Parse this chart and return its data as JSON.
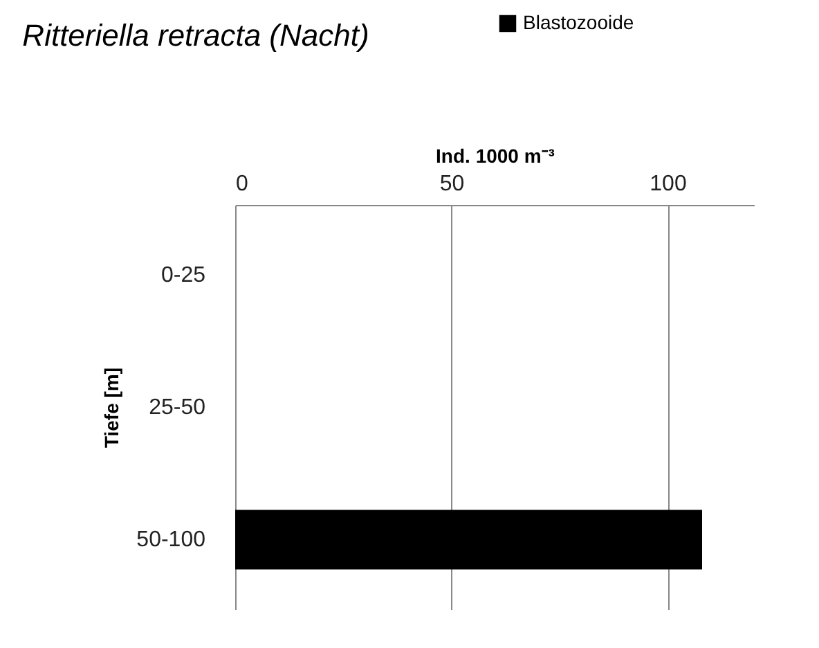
{
  "chart_data": {
    "type": "bar",
    "orientation": "horizontal",
    "title": "Ritteriella retracta (Nacht)",
    "xlabel": "Ind. 1000 m⁻³",
    "ylabel": "Tiefe [m]",
    "categories": [
      "0-25",
      "25-50",
      "50-100"
    ],
    "series": [
      {
        "name": "Blastozooide",
        "color": "#000000",
        "values": [
          0,
          0,
          108
        ]
      }
    ],
    "xlim": [
      0,
      120
    ],
    "xticks": [
      0,
      50,
      100
    ],
    "grid": "x",
    "legend": "top right"
  }
}
